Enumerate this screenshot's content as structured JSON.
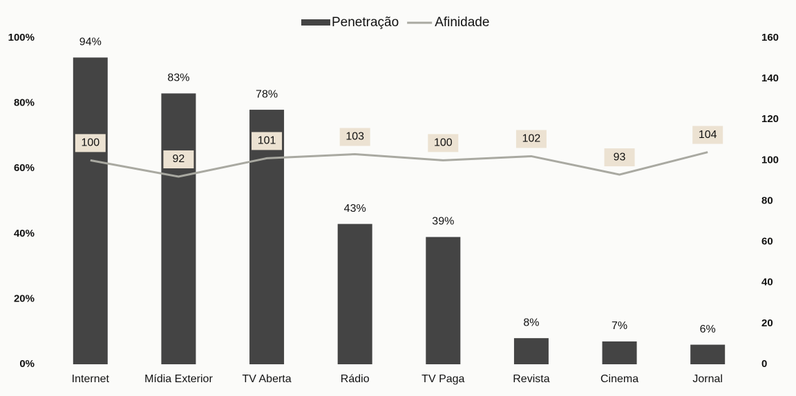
{
  "chart_data": {
    "type": "bar",
    "categories": [
      "Internet",
      "Mídia Exterior",
      "TV Aberta",
      "Rádio",
      "TV Paga",
      "Revista",
      "Cinema",
      "Jornal"
    ],
    "series": [
      {
        "name": "Penetração",
        "type": "bar",
        "color": "#444444",
        "axis": "y",
        "values": [
          94,
          83,
          78,
          43,
          39,
          8,
          7,
          6
        ],
        "value_labels": [
          "94%",
          "83%",
          "78%",
          "43%",
          "39%",
          "8%",
          "7%",
          "6%"
        ]
      },
      {
        "name": "Afinidade",
        "type": "line",
        "color": "#a9a9a1",
        "axis": "y2",
        "values": [
          100,
          92,
          101,
          103,
          100,
          102,
          93,
          104
        ]
      }
    ],
    "ylim": [
      0,
      100
    ],
    "yticks": [
      {
        "value": 0,
        "label": "0%"
      },
      {
        "value": 20,
        "label": "20%"
      },
      {
        "value": 40,
        "label": "40%"
      },
      {
        "value": 60,
        "label": "60%"
      },
      {
        "value": 80,
        "label": "80%"
      },
      {
        "value": 100,
        "label": "100%"
      }
    ],
    "y2lim": [
      0,
      160
    ],
    "y2ticks": [
      0,
      20,
      40,
      60,
      80,
      100,
      120,
      140,
      160
    ],
    "legend": "top",
    "grid": false
  }
}
